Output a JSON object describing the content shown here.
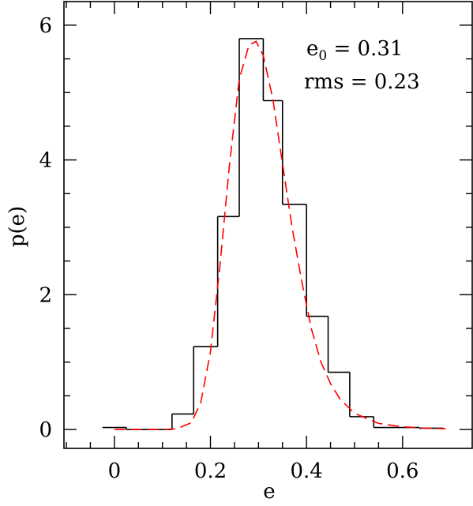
{
  "chart_data": {
    "type": "histogram",
    "xlabel": "e",
    "ylabel": "p(e)",
    "xlim": [
      -0.105,
      0.745
    ],
    "ylim": [
      -0.28,
      6.35
    ],
    "x_ticks": [
      0,
      0.2,
      0.4,
      0.6
    ],
    "x_tick_labels": [
      "0",
      "0.2",
      "0.4",
      "0.6"
    ],
    "y_ticks": [
      0,
      2,
      4,
      6
    ],
    "y_tick_labels": [
      "0",
      "2",
      "4",
      "6"
    ],
    "histogram": {
      "bin_edges": [
        -0.025,
        0.025,
        0.07,
        0.12,
        0.165,
        0.215,
        0.26,
        0.31,
        0.35,
        0.4,
        0.445,
        0.49,
        0.54,
        0.585,
        0.635,
        0.685
      ],
      "values": [
        0.03,
        0.0,
        0.0,
        0.23,
        1.23,
        3.16,
        5.8,
        4.88,
        3.34,
        1.68,
        0.85,
        0.19,
        0.03,
        0.03,
        0.02
      ],
      "color": "#000000"
    },
    "fit_curve": {
      "style": "dashed",
      "color": "#ff0000",
      "x": [
        0.0,
        0.05,
        0.1,
        0.13,
        0.16,
        0.18,
        0.2,
        0.22,
        0.24,
        0.26,
        0.28,
        0.295,
        0.31,
        0.33,
        0.35,
        0.37,
        0.39,
        0.41,
        0.43,
        0.45,
        0.47,
        0.5,
        0.55,
        0.6,
        0.65,
        0.69
      ],
      "y": [
        0.0,
        0.0,
        0.0,
        0.01,
        0.1,
        0.4,
        1.15,
        2.45,
        3.95,
        5.2,
        5.7,
        5.76,
        5.55,
        4.9,
        3.95,
        3.0,
        2.2,
        1.5,
        1.0,
        0.68,
        0.45,
        0.24,
        0.09,
        0.04,
        0.02,
        0.01
      ]
    },
    "annotations": {
      "e0_symbol": "e",
      "e0_sub": "0",
      "e0_value": " = 0.31",
      "rms_text": "rms = 0.23"
    }
  }
}
